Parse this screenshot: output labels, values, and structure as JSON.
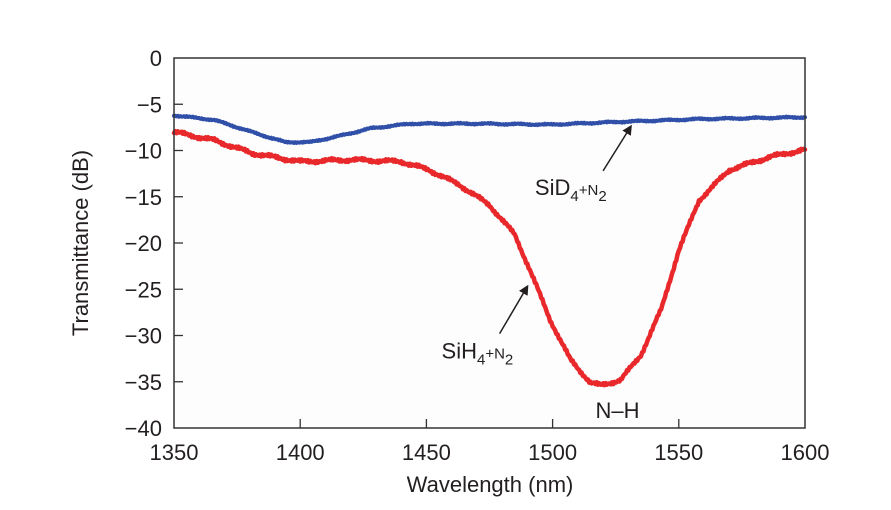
{
  "chart_data": {
    "type": "line",
    "title": "",
    "xlabel": "Wavelength (nm)",
    "ylabel": "Transmittance (dB)",
    "xlim": [
      1350,
      1600
    ],
    "ylim": [
      -40,
      0
    ],
    "xticks": [
      1350,
      1400,
      1450,
      1500,
      1550,
      1600
    ],
    "yticks": [
      0,
      -5,
      -10,
      -15,
      -20,
      -25,
      -30,
      -35,
      -40
    ],
    "xtick_labels": [
      "1350",
      "1400",
      "1450",
      "1500",
      "1550",
      "1600"
    ],
    "ytick_labels": [
      "0",
      "−5",
      "−10",
      "−15",
      "−20",
      "−25",
      "−30",
      "−35",
      "−40"
    ],
    "grid": false,
    "legend": "none (inline annotations)",
    "series": [
      {
        "name": "SiD4+N2",
        "color": "#2f4fa8",
        "x": [
          1350,
          1366,
          1382,
          1394,
          1404,
          1416,
          1428,
          1444,
          1471,
          1499,
          1527,
          1558,
          1600
        ],
        "y": [
          -6.2,
          -6.7,
          -8.1,
          -9.1,
          -9.1,
          -8.4,
          -7.6,
          -7.1,
          -7.1,
          -7.2,
          -6.9,
          -6.6,
          -6.4
        ]
      },
      {
        "name": "SiH4+N2",
        "color": "#e8282a",
        "x": [
          1350,
          1366,
          1381,
          1400,
          1420,
          1440,
          1451,
          1463,
          1475,
          1485,
          1491,
          1499,
          1507,
          1515,
          1519,
          1527,
          1535,
          1543,
          1550,
          1558,
          1570,
          1586,
          1600
        ],
        "y": [
          -8.0,
          -8.9,
          -10.3,
          -11.2,
          -11.0,
          -11.2,
          -12.1,
          -13.7,
          -15.9,
          -19.1,
          -22.9,
          -28.3,
          -32.6,
          -35.1,
          -35.4,
          -34.8,
          -32.1,
          -27.2,
          -20.8,
          -15.4,
          -12.1,
          -10.7,
          -9.9
        ]
      }
    ],
    "annotations": [
      {
        "id": "sid4",
        "base": "SiD",
        "sub1": "4",
        "mid": "+N",
        "sub2": "2",
        "arrow_to": [
          1531,
          -7.4
        ],
        "arrow_from": [
          1520,
          -12.2
        ],
        "text_at": [
          1493,
          -14.8
        ]
      },
      {
        "id": "sih4",
        "base": "SiH",
        "sub1": "4",
        "mid": "+N",
        "sub2": "2",
        "arrow_to": [
          1490,
          -24.7
        ],
        "arrow_from": [
          1479,
          -29.8
        ],
        "text_at": [
          1456,
          -32.5
        ]
      },
      {
        "id": "nh",
        "text": "N–H",
        "text_at": [
          1517,
          -38.9
        ]
      }
    ]
  }
}
